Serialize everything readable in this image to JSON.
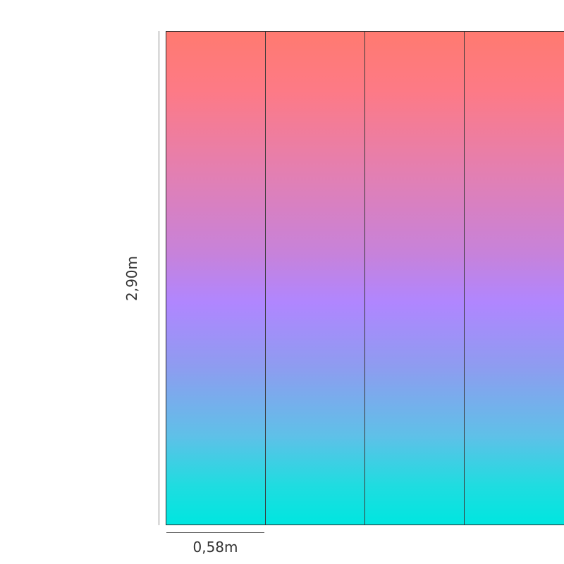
{
  "dimensions": {
    "height_label": "2,90m",
    "panel_width_label": "0,58m"
  },
  "wall": {
    "panel_count_visible": 4,
    "gradient_colors": [
      "#ff7a70",
      "#b086ff",
      "#00e6e0"
    ]
  }
}
